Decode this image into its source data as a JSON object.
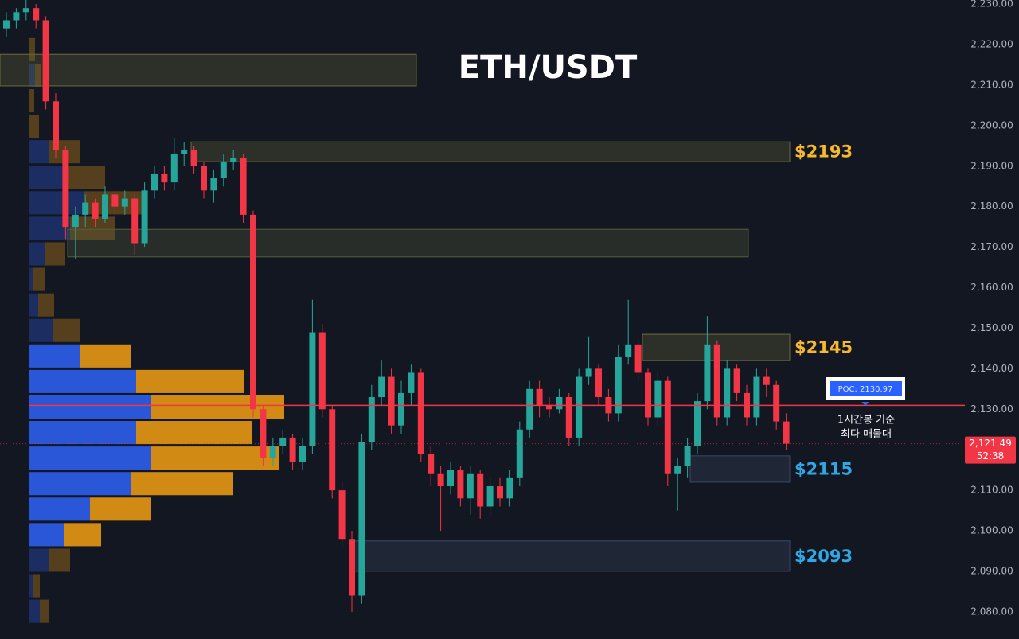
{
  "chart_data": {
    "type": "candlestick",
    "title": "ETH/USDT",
    "open": [
      2224,
      2226,
      2228,
      2229,
      2226,
      2206,
      2194,
      2175,
      2178,
      2181,
      2177,
      2183,
      2180,
      2182,
      2171,
      2184,
      2188,
      2186,
      2193,
      2194,
      2190,
      2184,
      2187,
      2191,
      2192,
      2178,
      2130,
      2118,
      2121,
      2123,
      2117,
      2121,
      2149,
      2130,
      2110,
      2098,
      2084,
      2122,
      2133,
      2138,
      2126,
      2134,
      2139,
      2119,
      2114,
      2111,
      2115,
      2108,
      2114,
      2106,
      2111,
      2108,
      2113,
      2125,
      2135,
      2131,
      2130,
      2133,
      2123,
      2138,
      2140,
      2133,
      2129,
      2143,
      2146,
      2139,
      2128,
      2137,
      2114,
      2116,
      2121,
      2132,
      2146,
      2128,
      2140,
      2134,
      2128,
      2138,
      2136,
      2127
    ],
    "high": [
      2228,
      2229,
      2231,
      2230,
      2227,
      2208,
      2195,
      2180,
      2183,
      2182,
      2185,
      2184,
      2184,
      2183,
      2186,
      2190,
      2190,
      2197,
      2196,
      2195,
      2191,
      2189,
      2193,
      2194,
      2193,
      2179,
      2131,
      2123,
      2125,
      2124,
      2123,
      2157,
      2151,
      2131,
      2112,
      2100,
      2124,
      2136,
      2142,
      2140,
      2137,
      2141,
      2140,
      2121,
      2116,
      2117,
      2116,
      2116,
      2115,
      2113,
      2113,
      2115,
      2127,
      2137,
      2137,
      2133,
      2135,
      2134,
      2140,
      2148,
      2141,
      2135,
      2146,
      2157,
      2147,
      2140,
      2139,
      2138,
      2118,
      2123,
      2134,
      2153,
      2147,
      2142,
      2141,
      2136,
      2140,
      2140,
      2137,
      2129
    ],
    "low": [
      2222,
      2224,
      2226,
      2224,
      2204,
      2192,
      2172,
      2167,
      2175,
      2175,
      2176,
      2178,
      2178,
      2168,
      2170,
      2182,
      2184,
      2184,
      2190,
      2188,
      2182,
      2181,
      2185,
      2189,
      2176,
      2128,
      2116,
      2116,
      2119,
      2115,
      2115,
      2119,
      2128,
      2108,
      2096,
      2080,
      2082,
      2120,
      2131,
      2124,
      2124,
      2131,
      2117,
      2111,
      2100,
      2109,
      2106,
      2104,
      2103,
      2104,
      2106,
      2106,
      2111,
      2123,
      2128,
      2128,
      2129,
      2121,
      2121,
      2136,
      2131,
      2127,
      2127,
      2141,
      2137,
      2126,
      2126,
      2111,
      2105,
      2113,
      2119,
      2130,
      2126,
      2126,
      2132,
      2126,
      2126,
      2133,
      2125,
      2120
    ],
    "close": [
      2226,
      2228,
      2229,
      2226,
      2206,
      2194,
      2175,
      2178,
      2181,
      2177,
      2183,
      2180,
      2182,
      2171,
      2184,
      2188,
      2186,
      2193,
      2194,
      2190,
      2184,
      2187,
      2191,
      2192,
      2178,
      2130,
      2118,
      2121,
      2123,
      2117,
      2121,
      2149,
      2130,
      2110,
      2098,
      2084,
      2122,
      2133,
      2138,
      2126,
      2134,
      2139,
      2119,
      2114,
      2111,
      2115,
      2108,
      2114,
      2106,
      2111,
      2108,
      2113,
      2125,
      2135,
      2131,
      2130,
      2133,
      2123,
      2138,
      2140,
      2133,
      2129,
      2143,
      2146,
      2139,
      2128,
      2137,
      2114,
      2116,
      2121,
      2132,
      2146,
      2128,
      2140,
      2134,
      2128,
      2138,
      2136,
      2127,
      2121.49
    ],
    "up_color": "#26a69a",
    "down_color": "#f23645",
    "ylim": [
      2073.3,
      2231
    ],
    "yticks": [
      {
        "value": 2230,
        "label": "2,230.00"
      },
      {
        "value": 2220,
        "label": "2,220.00"
      },
      {
        "value": 2210,
        "label": "2,210.00"
      },
      {
        "value": 2200,
        "label": "2,200.00"
      },
      {
        "value": 2190,
        "label": "2,190.00"
      },
      {
        "value": 2180,
        "label": "2,180.00"
      },
      {
        "value": 2170,
        "label": "2,170.00"
      },
      {
        "value": 2160,
        "label": "2,160.00"
      },
      {
        "value": 2150,
        "label": "2,150.00"
      },
      {
        "value": 2140,
        "label": "2,140.00"
      },
      {
        "value": 2130,
        "label": "2,130.00"
      },
      {
        "value": 2120,
        "label": "2,120.00"
      },
      {
        "value": 2110,
        "label": "2,110.00"
      },
      {
        "value": 2100,
        "label": "2,100.00"
      },
      {
        "value": 2090,
        "label": "2,090.00"
      },
      {
        "value": 2080,
        "label": "2,080.00"
      }
    ],
    "zones": [
      {
        "range": [
          2209.8,
          2217.6
        ],
        "color": "#6b6b3a"
      },
      {
        "range": [
          2191.1,
          2196.0
        ],
        "color": "#6b6b3a",
        "label": "$2193",
        "label_color": "#f5b82e"
      },
      {
        "range": [
          2167.6,
          2174.4
        ],
        "color": "#5a5f3e"
      },
      {
        "range": [
          2142.0,
          2148.5
        ],
        "color": "#6b6b3a",
        "label": "$2145",
        "label_color": "#f5b82e"
      },
      {
        "range": [
          2112.0,
          2118.5
        ],
        "color": "#3b4a66",
        "label": "$2115",
        "label_color": "#2fa8e6"
      },
      {
        "range": [
          2090.0,
          2097.5
        ],
        "color": "#3b4a66",
        "label": "$2093",
        "label_color": "#2fa8e6"
      }
    ],
    "poc": {
      "value": 2130.97,
      "label": "POC: 2130.97",
      "color": "#f23645"
    },
    "annotation": [
      "1시간봉 기준",
      "최다 매물대"
    ],
    "last_price": {
      "value": 2121.49,
      "label": "2,121.49"
    },
    "countdown": "52:38",
    "volume_profile": {
      "bins": [
        2077.0,
        2083.3,
        2089.6,
        2095.9,
        2102.2,
        2108.5,
        2114.8,
        2121.1,
        2127.4,
        2133.7,
        2140.0,
        2146.3,
        2152.6,
        2158.9,
        2165.2,
        2171.5,
        2177.8,
        2184.1,
        2190.4,
        2196.7,
        2203.0,
        2209.3,
        2215.6,
        2221.9
      ],
      "series": [
        {
          "color": "#2a56d8",
          "values": [
            14,
            6,
            26,
            45,
            77,
            128,
            154,
            135,
            154,
            135,
            64,
            31,
            12,
            6,
            20,
            52,
            69,
            44,
            26,
            0,
            0,
            8,
            0
          ]
        },
        {
          "color": "#d18a14",
          "values": [
            12,
            8,
            26,
            46,
            77,
            129,
            160,
            145,
            167,
            135,
            65,
            34,
            20,
            14,
            26,
            57,
            80,
            52,
            39,
            13,
            7,
            8,
            8
          ]
        }
      ]
    }
  }
}
